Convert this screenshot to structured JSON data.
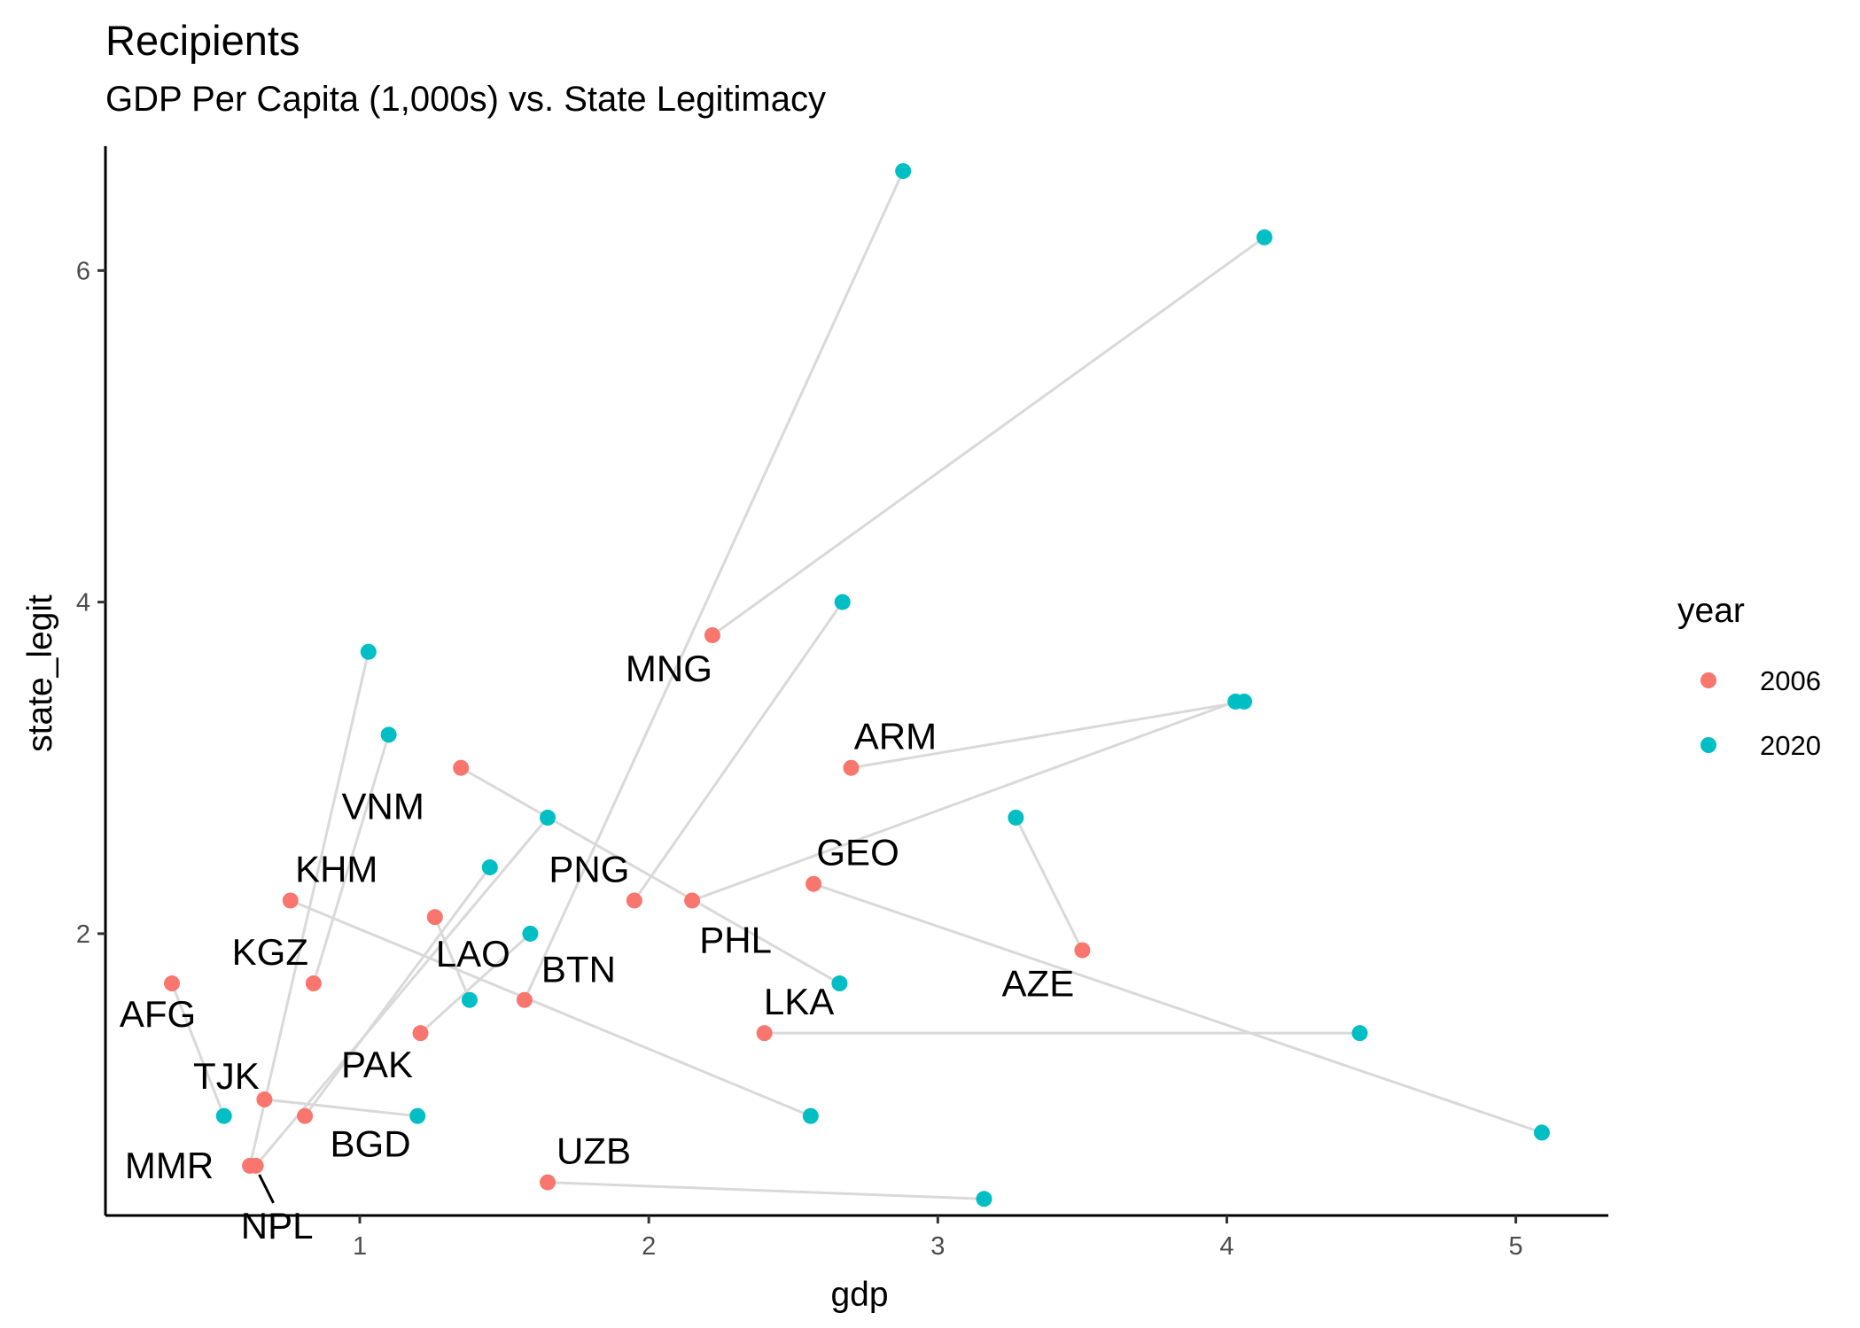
{
  "chart_data": {
    "type": "scatter",
    "title": "Recipients",
    "subtitle": "GDP Per Capita (1,000s) vs. State Legitimacy",
    "xlabel": "gdp",
    "ylabel": "state_legit",
    "xlim": [
      0.12,
      5.32
    ],
    "ylim": [
      0.3,
      6.75
    ],
    "x_ticks": [
      1,
      2,
      3,
      4,
      5
    ],
    "y_ticks": [
      2,
      4,
      6
    ],
    "grid": false,
    "legend": {
      "title": "year",
      "position": "right",
      "entries": [
        {
          "label": "2006",
          "color": "#F8766D"
        },
        {
          "label": "2020",
          "color": "#00BFC4"
        }
      ]
    },
    "connector_color": "#d9d9d9",
    "series": [
      {
        "name": "2006",
        "color": "#F8766D"
      },
      {
        "name": "2020",
        "color": "#00BFC4"
      }
    ],
    "countries": [
      {
        "code": "AFG",
        "x2006": 0.35,
        "y2006": 1.7,
        "x2020": 0.53,
        "y2020": 0.9,
        "label": "AFG"
      },
      {
        "code": "MMR",
        "x2006": 0.62,
        "y2006": 0.6,
        "x2020": 1.03,
        "y2020": 3.7,
        "label": "MMR"
      },
      {
        "code": "NPL",
        "x2006": 0.64,
        "y2006": 0.6,
        "x2020": 1.65,
        "y2020": 2.7,
        "label": "NPL"
      },
      {
        "code": "TJK",
        "x2006": 0.67,
        "y2006": 1.0,
        "x2020": 1.2,
        "y2020": 0.9,
        "label": "TJK"
      },
      {
        "code": "KHM",
        "x2006": 0.76,
        "y2006": 2.2,
        "x2020": 2.56,
        "y2020": 0.9,
        "label": "KHM"
      },
      {
        "code": "BGD",
        "x2006": 0.81,
        "y2006": 0.9,
        "x2020": 1.45,
        "y2020": 2.4,
        "label": "BGD"
      },
      {
        "code": "KGZ",
        "x2006": 0.84,
        "y2006": 1.7,
        "x2020": 1.1,
        "y2020": 3.2,
        "label": "KGZ"
      },
      {
        "code": "PAK",
        "x2006": 1.21,
        "y2006": 1.4,
        "x2020": 1.59,
        "y2020": 2.0,
        "label": "PAK"
      },
      {
        "code": "LAO",
        "x2006": 1.26,
        "y2006": 2.1,
        "x2020": 1.38,
        "y2020": 1.6,
        "label": "LAO"
      },
      {
        "code": "VNM",
        "x2006": 1.35,
        "y2006": 3.0,
        "x2020": 2.66,
        "y2020": 1.7,
        "label": "VNM"
      },
      {
        "code": "BTN",
        "x2006": 1.57,
        "y2006": 1.6,
        "x2020": 2.88,
        "y2020": 6.6,
        "label": "BTN"
      },
      {
        "code": "UZB",
        "x2006": 1.65,
        "y2006": 0.5,
        "x2020": 3.16,
        "y2020": 0.4,
        "label": "UZB"
      },
      {
        "code": "PNG",
        "x2006": 1.95,
        "y2006": 2.2,
        "x2020": 2.67,
        "y2020": 4.0,
        "label": "PNG"
      },
      {
        "code": "PHL",
        "x2006": 2.15,
        "y2006": 2.2,
        "x2020": 4.03,
        "y2020": 3.4,
        "label": "PHL"
      },
      {
        "code": "MNG",
        "x2006": 2.22,
        "y2006": 3.8,
        "x2020": 4.13,
        "y2020": 6.2,
        "label": "MNG"
      },
      {
        "code": "LKA",
        "x2006": 2.4,
        "y2006": 1.4,
        "x2020": 4.46,
        "y2020": 1.4,
        "label": "LKA"
      },
      {
        "code": "GEO",
        "x2006": 2.57,
        "y2006": 2.3,
        "x2020": 5.09,
        "y2020": 0.8,
        "label": "GEO"
      },
      {
        "code": "ARM",
        "x2006": 2.7,
        "y2006": 3.0,
        "x2020": 4.06,
        "y2020": 3.4,
        "label": "ARM"
      },
      {
        "code": "AZE",
        "x2006": 3.5,
        "y2006": 1.9,
        "x2020": 3.27,
        "y2020": 2.7,
        "label": "AZE"
      }
    ]
  }
}
